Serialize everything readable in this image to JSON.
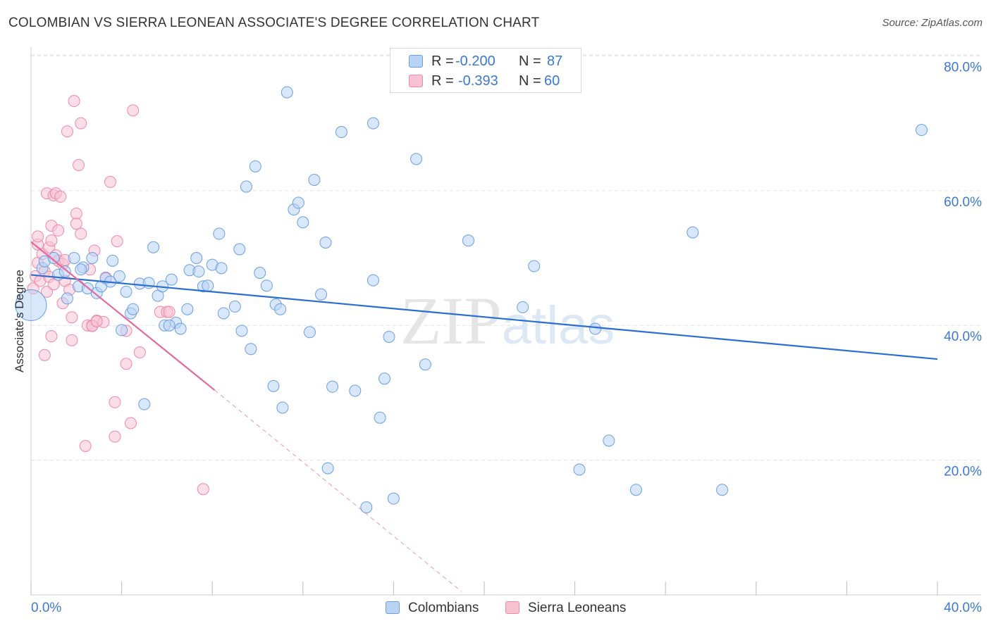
{
  "title": "COLOMBIAN VS SIERRA LEONEAN ASSOCIATE'S DEGREE CORRELATION CHART",
  "source": "Source: ZipAtlas.com",
  "watermark": "ZIPatlas",
  "colors": {
    "blue_fill": "#b9d3f5",
    "blue_stroke": "#6a9fe0",
    "blue_line": "#2b6fce",
    "pink_fill": "#f8c2d3",
    "pink_stroke": "#ee88a8",
    "pink_line": "#e4689a",
    "tick_label": "#3a78d4",
    "grid": "#e3e3e3"
  },
  "legend": {
    "rows": [
      {
        "r_label": "R =",
        "r_value": "-0.200",
        "n_label": "N =",
        "n_value": "87"
      },
      {
        "r_label": "R =",
        "r_value": "-0.393",
        "n_label": "N =",
        "n_value": "60"
      }
    ]
  },
  "bottom_legend": {
    "series1": "Colombians",
    "series2": "Sierra Leoneans"
  },
  "chart_data": {
    "type": "scatter",
    "title": "COLOMBIAN VS SIERRA LEONEAN ASSOCIATE'S DEGREE CORRELATION CHART",
    "xlabel": "",
    "ylabel": "Associate's Degree",
    "xlim": [
      0,
      40
    ],
    "ylim": [
      0,
      82
    ],
    "x_ticks": [
      "0.0%",
      "40.0%"
    ],
    "y_ticks": [
      {
        "value": 20,
        "label": "20.0%"
      },
      {
        "value": 40,
        "label": "40.0%"
      },
      {
        "value": 60,
        "label": "60.0%"
      },
      {
        "value": 80,
        "label": "80.0%"
      }
    ],
    "grid": true,
    "legend_position": "top-center",
    "series": [
      {
        "name": "Colombians",
        "R": -0.2,
        "N": 87,
        "trend": {
          "x": [
            0.0,
            40.0
          ],
          "y": [
            47.5,
            35.0
          ]
        },
        "points": [
          [
            0.0,
            43.0
          ],
          [
            0.5,
            48.5
          ],
          [
            0.6,
            49.5
          ],
          [
            1.0,
            50.0
          ],
          [
            1.2,
            47.5
          ],
          [
            1.5,
            48.0
          ],
          [
            1.6,
            44.0
          ],
          [
            1.9,
            50.0
          ],
          [
            2.1,
            45.8
          ],
          [
            2.3,
            48.6
          ],
          [
            2.5,
            45.5
          ],
          [
            2.7,
            50.0
          ],
          [
            2.9,
            44.8
          ],
          [
            3.1,
            45.8
          ],
          [
            3.3,
            47.0
          ],
          [
            3.5,
            46.5
          ],
          [
            3.6,
            49.6
          ],
          [
            3.9,
            47.3
          ],
          [
            4.0,
            39.3
          ],
          [
            4.2,
            45.0
          ],
          [
            4.4,
            41.8
          ],
          [
            4.5,
            42.4
          ],
          [
            4.8,
            46.2
          ],
          [
            5.0,
            28.3
          ],
          [
            5.2,
            46.3
          ],
          [
            5.4,
            51.6
          ],
          [
            5.6,
            44.4
          ],
          [
            5.8,
            45.8
          ],
          [
            5.9,
            40.0
          ],
          [
            6.2,
            46.8
          ],
          [
            6.4,
            40.4
          ],
          [
            6.6,
            39.5
          ],
          [
            6.9,
            42.4
          ],
          [
            7.0,
            48.2
          ],
          [
            7.3,
            50.0
          ],
          [
            7.4,
            48.0
          ],
          [
            7.6,
            45.8
          ],
          [
            7.8,
            45.9
          ],
          [
            8.0,
            49.0
          ],
          [
            8.3,
            53.6
          ],
          [
            8.4,
            48.5
          ],
          [
            8.5,
            41.8
          ],
          [
            9.0,
            42.8
          ],
          [
            9.2,
            51.3
          ],
          [
            9.3,
            39.2
          ],
          [
            9.5,
            60.6
          ],
          [
            9.7,
            36.5
          ],
          [
            9.9,
            63.6
          ],
          [
            10.1,
            47.8
          ],
          [
            10.4,
            45.9
          ],
          [
            10.7,
            31.0
          ],
          [
            10.8,
            43.1
          ],
          [
            11.0,
            42.4
          ],
          [
            11.1,
            27.8
          ],
          [
            11.3,
            74.6
          ],
          [
            11.6,
            57.2
          ],
          [
            11.8,
            58.2
          ],
          [
            12.0,
            55.3
          ],
          [
            12.3,
            39.0
          ],
          [
            12.5,
            61.6
          ],
          [
            12.8,
            44.6
          ],
          [
            13.0,
            52.3
          ],
          [
            13.1,
            18.8
          ],
          [
            13.3,
            30.9
          ],
          [
            13.7,
            68.7
          ],
          [
            14.3,
            30.3
          ],
          [
            14.8,
            13.0
          ],
          [
            15.1,
            46.7
          ],
          [
            15.1,
            70.0
          ],
          [
            15.4,
            26.3
          ],
          [
            15.6,
            32.1
          ],
          [
            15.8,
            38.3
          ],
          [
            16.0,
            14.3
          ],
          [
            17.0,
            64.7
          ],
          [
            17.4,
            34.2
          ],
          [
            19.3,
            52.6
          ],
          [
            21.7,
            42.7
          ],
          [
            22.2,
            48.8
          ],
          [
            24.2,
            18.6
          ],
          [
            24.9,
            39.5
          ],
          [
            25.5,
            22.9
          ],
          [
            26.7,
            15.6
          ],
          [
            29.2,
            53.8
          ],
          [
            30.5,
            15.6
          ],
          [
            39.3,
            69.0
          ],
          [
            2.2,
            48.3
          ],
          [
            6.1,
            40.0
          ]
        ]
      },
      {
        "name": "Sierra Leoneans",
        "R": -0.393,
        "N": 60,
        "trend": {
          "x": [
            0.0,
            8.1
          ],
          "y": [
            52.4,
            30.4
          ]
        },
        "trend_dashed": {
          "x": [
            8.1,
            19.0
          ],
          "y": [
            30.4,
            0.5
          ]
        },
        "points": [
          [
            0.1,
            45.5
          ],
          [
            0.2,
            47.3
          ],
          [
            0.3,
            52.0
          ],
          [
            0.3,
            49.3
          ],
          [
            0.4,
            46.6
          ],
          [
            0.5,
            50.6
          ],
          [
            0.6,
            48.0
          ],
          [
            0.6,
            35.6
          ],
          [
            0.7,
            59.6
          ],
          [
            0.7,
            45.0
          ],
          [
            0.8,
            51.6
          ],
          [
            0.9,
            52.6
          ],
          [
            0.9,
            38.4
          ],
          [
            0.9,
            54.8
          ],
          [
            1.0,
            59.3
          ],
          [
            1.1,
            59.6
          ],
          [
            1.1,
            50.4
          ],
          [
            1.2,
            54.1
          ],
          [
            1.2,
            49.6
          ],
          [
            1.3,
            59.1
          ],
          [
            1.4,
            49.1
          ],
          [
            1.4,
            43.3
          ],
          [
            1.5,
            46.6
          ],
          [
            1.6,
            68.8
          ],
          [
            1.7,
            45.3
          ],
          [
            1.8,
            41.2
          ],
          [
            1.8,
            37.8
          ],
          [
            1.9,
            73.3
          ],
          [
            2.0,
            56.6
          ],
          [
            2.0,
            55.1
          ],
          [
            2.1,
            63.8
          ],
          [
            2.2,
            53.6
          ],
          [
            2.2,
            70.0
          ],
          [
            2.4,
            22.1
          ],
          [
            2.5,
            40.0
          ],
          [
            2.6,
            48.3
          ],
          [
            2.7,
            40.0
          ],
          [
            2.8,
            51.1
          ],
          [
            2.9,
            40.7
          ],
          [
            3.2,
            40.5
          ],
          [
            3.3,
            47.1
          ],
          [
            3.5,
            61.3
          ],
          [
            3.7,
            28.6
          ],
          [
            3.7,
            23.5
          ],
          [
            3.8,
            52.5
          ],
          [
            4.2,
            34.3
          ],
          [
            4.2,
            39.2
          ],
          [
            4.4,
            25.5
          ],
          [
            4.5,
            71.9
          ],
          [
            4.8,
            36.0
          ],
          [
            5.7,
            42.0
          ],
          [
            6.0,
            42.0
          ],
          [
            6.1,
            42.0
          ],
          [
            7.6,
            15.7
          ],
          [
            0.3,
            53.2
          ],
          [
            1.5,
            49.7
          ],
          [
            2.7,
            39.9
          ],
          [
            0.8,
            47.2
          ],
          [
            1.0,
            46.1
          ],
          [
            2.9,
            40.6
          ]
        ]
      }
    ]
  }
}
